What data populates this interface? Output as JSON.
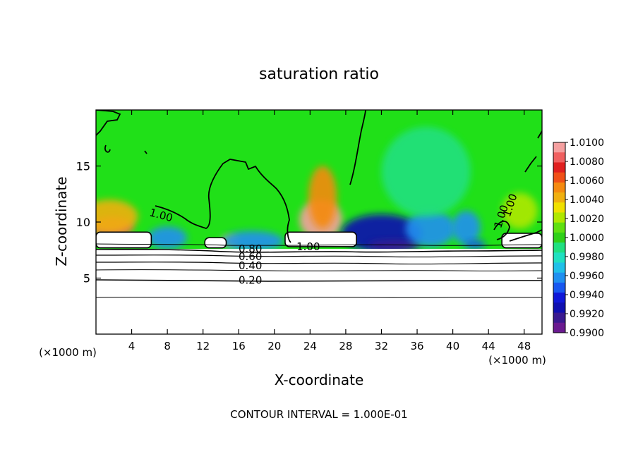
{
  "chart_data": {
    "type": "heatmap",
    "title": "saturation ratio",
    "xlabel": "X-coordinate",
    "ylabel": "Z-coordinate",
    "x_units_left": "(×1000 m)",
    "x_units_right": "(×1000 m)",
    "xlim": [
      0,
      50
    ],
    "ylim": [
      0,
      20
    ],
    "x_ticks": [
      4,
      8,
      12,
      16,
      20,
      24,
      28,
      32,
      36,
      40,
      44,
      48
    ],
    "x_tick_labels": [
      "4",
      "8",
      "12",
      "16",
      "20",
      "24",
      "28",
      "32",
      "36",
      "40",
      "44",
      "48"
    ],
    "y_ticks": [
      5,
      10,
      15
    ],
    "y_tick_labels": [
      "5",
      "10",
      "15"
    ],
    "footer": "CONTOUR INTERVAL = 1.000E-01",
    "colorbar": {
      "min": 0.99,
      "max": 1.01,
      "tick_labels": [
        "1.0100",
        "1.0080",
        "1.0060",
        "1.0040",
        "1.0020",
        "1.0000",
        "0.9980",
        "0.9960",
        "0.9940",
        "0.9920",
        "0.9900"
      ],
      "colors": [
        "#f5a0a0",
        "#f06060",
        "#e02020",
        "#f05018",
        "#f58a10",
        "#f0b010",
        "#f0e000",
        "#b0e800",
        "#60e010",
        "#30d018",
        "#20e080",
        "#20e0c0",
        "#20c0e8",
        "#2090f0",
        "#1858f0",
        "#1018d8",
        "#1010b0",
        "#3a1a90",
        "#6a1a90"
      ]
    },
    "contour_labels": [
      {
        "text": "1.00",
        "x": 7.2,
        "y": 10.3,
        "rotate": 15
      },
      {
        "text": "1.00",
        "x": 23.8,
        "y": 7.5,
        "rotate": 0
      },
      {
        "text": "1.00",
        "x": 46.8,
        "y": 11.4,
        "rotate": -72
      },
      {
        "text": "1.00",
        "x": 45.8,
        "y": 10.4,
        "rotate": -72
      },
      {
        "text": "0.80",
        "x": 17.3,
        "y": 7.3,
        "rotate": 0
      },
      {
        "text": "0.60",
        "x": 17.3,
        "y": 6.6,
        "rotate": 0
      },
      {
        "text": "0.40",
        "x": 17.3,
        "y": 5.8,
        "rotate": 0
      },
      {
        "text": "0.20",
        "x": 17.3,
        "y": 4.5,
        "rotate": 0
      }
    ],
    "cloud_regions": [
      {
        "x0": 0.0,
        "x1": 6.2,
        "y0": 7.7,
        "y1": 9.1
      },
      {
        "x0": 12.2,
        "x1": 14.6,
        "y0": 7.7,
        "y1": 8.6
      },
      {
        "x0": 21.2,
        "x1": 29.2,
        "y0": 7.8,
        "y1": 9.1
      },
      {
        "x0": 45.5,
        "x1": 50.0,
        "y0": 7.7,
        "y1": 9.0
      }
    ],
    "anomalies": [
      {
        "x": 1.8,
        "y": 9.6,
        "value": 1.0085,
        "rx": 2.4,
        "ry": 0.9
      },
      {
        "x": 1.5,
        "y": 10.5,
        "value": 1.0045,
        "rx": 3.2,
        "ry": 1.5
      },
      {
        "x": 25.2,
        "y": 10.2,
        "value": 1.009,
        "rx": 2.4,
        "ry": 1.8
      },
      {
        "x": 25.4,
        "y": 12.2,
        "value": 1.005,
        "rx": 1.6,
        "ry": 2.8
      },
      {
        "x": 15.0,
        "y": 8.3,
        "value": 1.003,
        "rx": 1.0,
        "ry": 0.5
      },
      {
        "x": 8.0,
        "y": 8.6,
        "value": 0.9962,
        "rx": 2.2,
        "ry": 1.0
      },
      {
        "x": 17.5,
        "y": 8.3,
        "value": 0.9955,
        "rx": 3.5,
        "ry": 0.9
      },
      {
        "x": 32.0,
        "y": 9.0,
        "value": 0.9928,
        "rx": 4.5,
        "ry": 1.7
      },
      {
        "x": 33.5,
        "y": 7.9,
        "value": 0.9912,
        "rx": 3.0,
        "ry": 0.5
      },
      {
        "x": 37.5,
        "y": 9.4,
        "value": 0.9958,
        "rx": 2.8,
        "ry": 1.6
      },
      {
        "x": 41.5,
        "y": 9.5,
        "value": 0.996,
        "rx": 1.6,
        "ry": 1.5
      },
      {
        "x": 42.5,
        "y": 8.0,
        "value": 0.9945,
        "rx": 1.2,
        "ry": 0.4
      },
      {
        "x": 37.0,
        "y": 14.5,
        "value": 0.9985,
        "rx": 5.0,
        "ry": 4.0
      },
      {
        "x": 47.5,
        "y": 11.0,
        "value": 1.002,
        "rx": 2.0,
        "ry": 1.6
      }
    ]
  }
}
